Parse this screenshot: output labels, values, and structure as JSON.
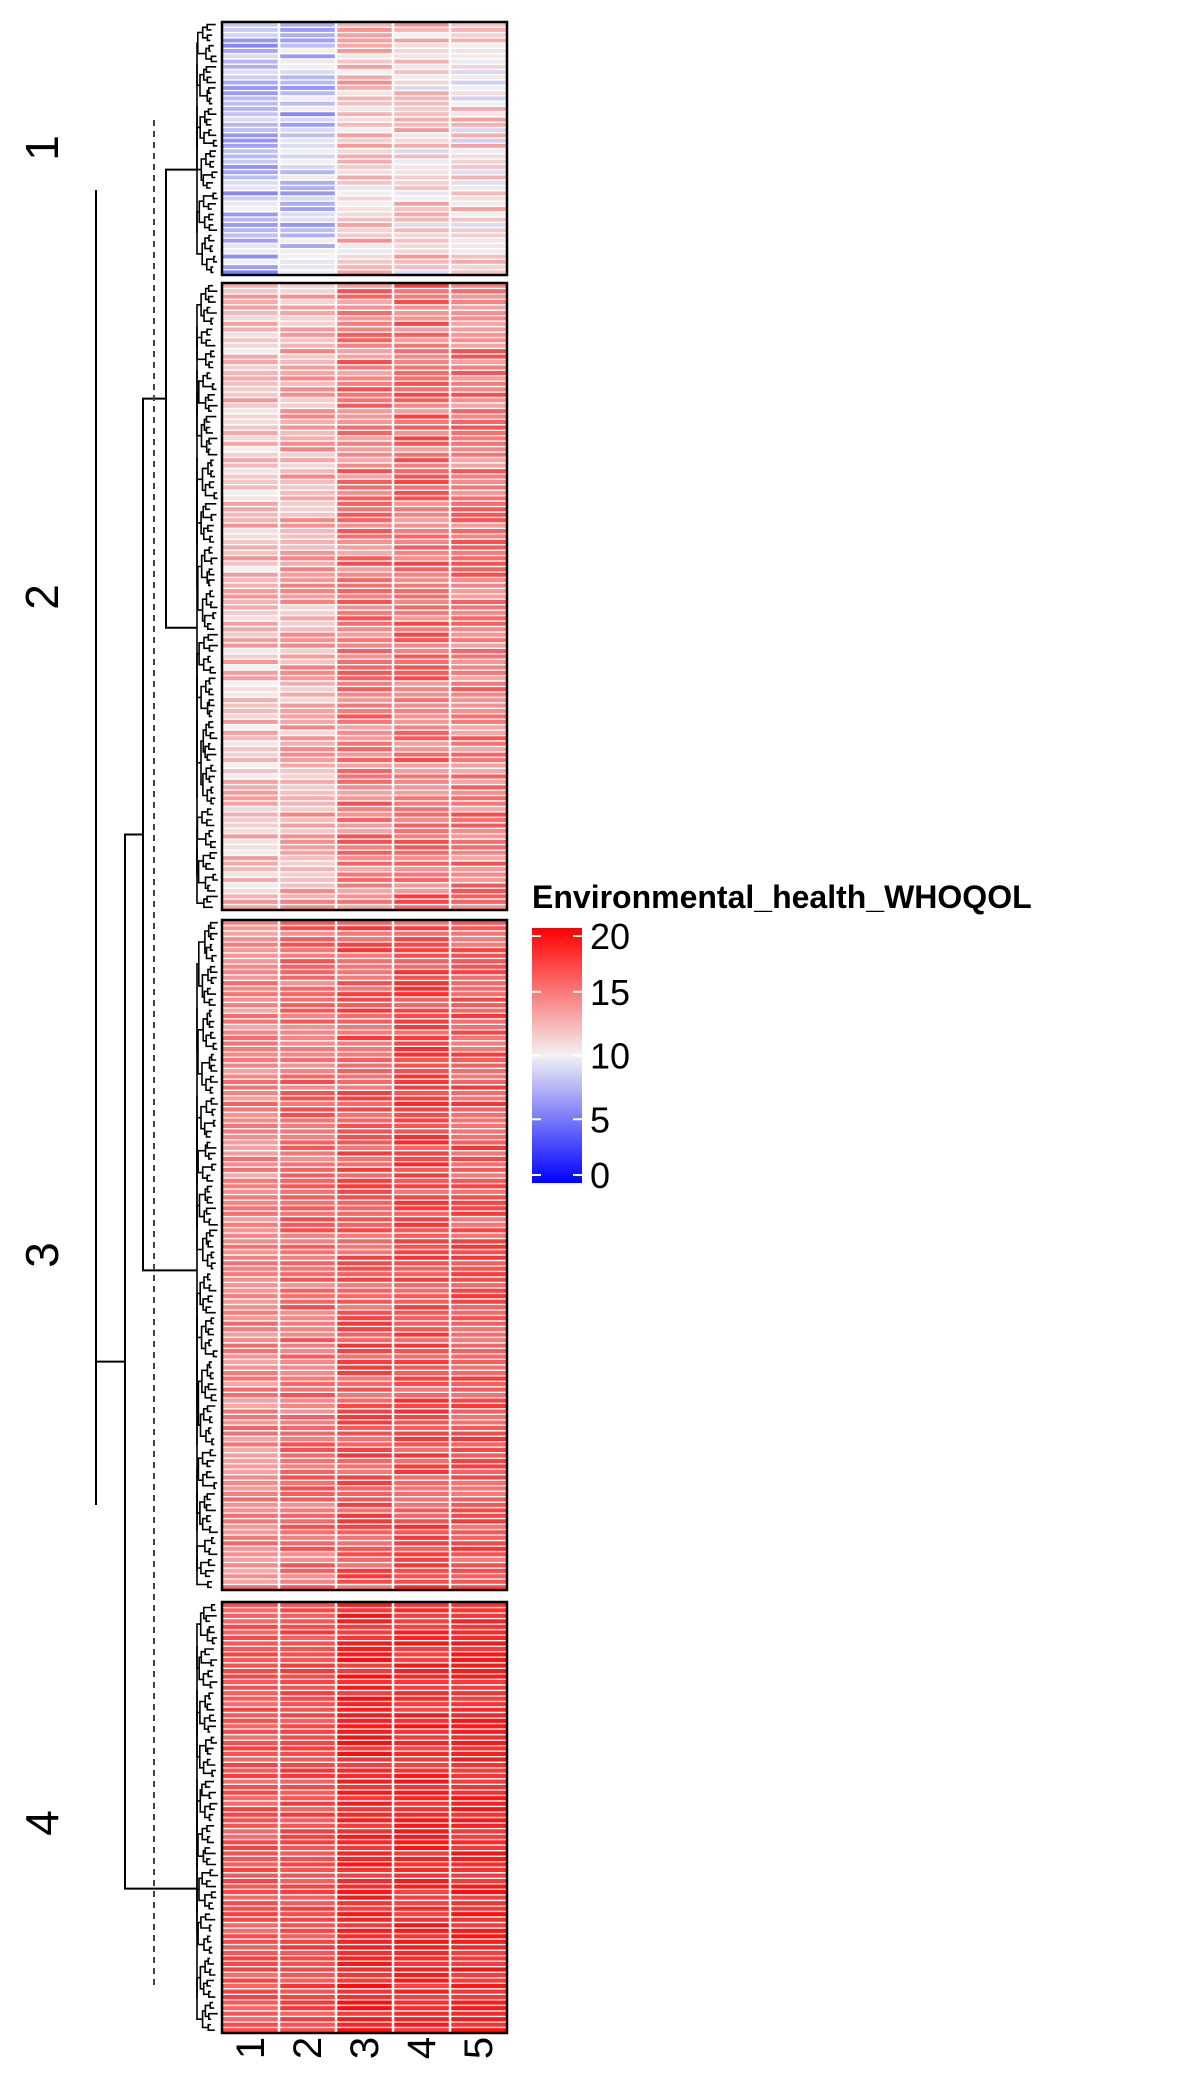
{
  "chart_data": {
    "type": "heatmap",
    "legend": {
      "title": "Environmental_health_WHOQOL",
      "ticks": [
        20,
        15,
        10,
        5,
        0
      ],
      "range": [
        0,
        20
      ],
      "color_low": "#0000ff",
      "color_mid": "#f2f2f2",
      "color_high": "#ff0000",
      "placement": "right"
    },
    "columns": [
      "1",
      "2",
      "3",
      "4",
      "5"
    ],
    "clusters": [
      {
        "label": "1",
        "rows": 48,
        "column_means": [
          7.5,
          8.0,
          12.0,
          11.5,
          11.0
        ],
        "spread": 2.5
      },
      {
        "label": "2",
        "rows": 115,
        "column_means": [
          12.0,
          13.0,
          15.0,
          15.5,
          15.0
        ],
        "spread": 2.0
      },
      {
        "label": "3",
        "rows": 122,
        "column_means": [
          14.5,
          15.5,
          16.5,
          16.8,
          16.5
        ],
        "spread": 1.5
      },
      {
        "label": "4",
        "rows": 78,
        "column_means": [
          16.5,
          17.0,
          18.5,
          18.3,
          18.5
        ],
        "spread": 1.0
      }
    ],
    "dendrogram_cut": "dashed"
  }
}
